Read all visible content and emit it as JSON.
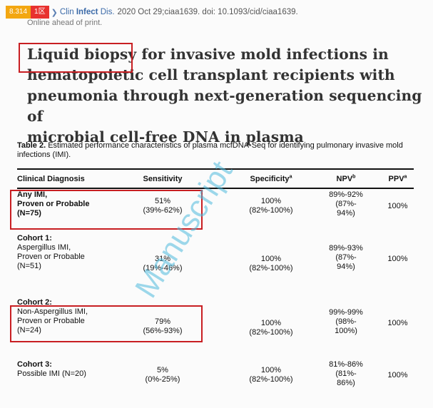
{
  "citation": {
    "impact_factor": "8.314",
    "badge": "1区",
    "journal_pre": "Clin",
    "journal_bold": "Infect",
    "journal_post": "Dis.",
    "details": "2020 Oct 29;ciaa1639. doi: 10.1093/cid/ciaa1639.",
    "status": "Online ahead of print."
  },
  "title": {
    "highlight": "Liquid biopsy",
    "line1_rest": " for invasive mold infections in",
    "line2": "hematopoietic cell transplant recipients with",
    "line3": "pneumonia through next-generation sequencing of",
    "line4": "microbial cell-free DNA in plasma"
  },
  "table": {
    "caption_label": "Table 2.",
    "caption_text": "Estimated performance characteristics of plasma mcfDNA-Seq for identifying pulmonary invasive mold infections (IMI).",
    "headers": {
      "diagnosis": "Clinical Diagnosis",
      "sensitivity": "Sensitivity",
      "specificity": "Specificity",
      "specificity_sup": "a",
      "npv": "NPV",
      "npv_sup": "b",
      "ppv": "PPV",
      "ppv_sup": "a"
    },
    "rows": [
      {
        "diag_lines": [
          "Any IMI,",
          "Proven or Probable",
          "(N=75)"
        ],
        "sens": [
          "51%",
          "(39%-62%)"
        ],
        "spec": [
          "100%",
          "(82%-100%)"
        ],
        "npv": [
          "89%-92%",
          "(87%-",
          "94%)"
        ],
        "ppv": "100%"
      },
      {
        "cohort": "Cohort 1:",
        "diag_lines": [
          "Aspergillus IMI,",
          "Proven or Probable",
          "(N=51)"
        ],
        "sens": [
          "31%",
          "(19%-46%)"
        ],
        "spec": [
          "100%",
          "(82%-100%)"
        ],
        "npv": [
          "89%-93%",
          "(87%-",
          "94%)"
        ],
        "ppv": "100%"
      },
      {
        "cohort": "Cohort 2:",
        "diag_lines": [
          "Non-Aspergillus IMI,",
          "Proven or Probable",
          "(N=24)"
        ],
        "sens": [
          "79%",
          "(56%-93%)"
        ],
        "spec": [
          "100%",
          "(82%-100%)"
        ],
        "npv": [
          "99%-99%",
          "(98%-",
          "100%)"
        ],
        "ppv": "100%"
      },
      {
        "cohort": "Cohort 3:",
        "diag_lines": [
          "Possible IMI (N=20)"
        ],
        "sens": [
          "5%",
          "(0%-25%)"
        ],
        "spec": [
          "100%",
          "(82%-100%)"
        ],
        "npv": [
          "81%-86%",
          "(81%-",
          "86%)"
        ],
        "ppv": "100%"
      }
    ]
  },
  "watermark": "Manuscript",
  "colors": {
    "highlight_box": "#c81e22",
    "impact_badge": "#f3a711",
    "rank_badge": "#e8312f",
    "journal_link": "#3b6aa8",
    "watermark": "#4ebadc"
  }
}
